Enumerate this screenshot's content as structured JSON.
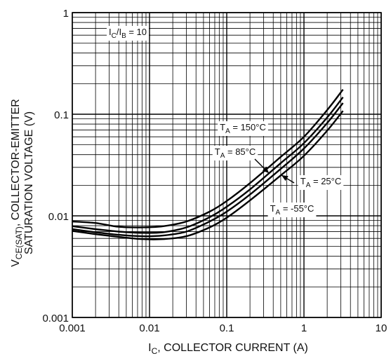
{
  "chart_data": {
    "type": "line",
    "x_scale": "log",
    "y_scale": "log",
    "xlim": [
      0.001,
      10
    ],
    "ylim": [
      0.001,
      1
    ],
    "grid": true,
    "x_ticks": [
      "0.001",
      "0.01",
      "0.1",
      "1",
      "10"
    ],
    "y_ticks": [
      "0.001",
      "0.01",
      "0.1",
      "1"
    ],
    "xlabel": {
      "main": "I",
      "sub": "C",
      "rest": ", COLLECTOR CURRENT (A)"
    },
    "ylabel": {
      "line1_main": "V",
      "line1_sub": "CE(SAT)",
      "line1_rest": ", COLLECTOR-EMITTER",
      "line2": "SATURATION VOLTAGE (V)"
    },
    "condition": {
      "a_main": "I",
      "a_sub": "C",
      "mid": "/I",
      "b_sub": "B",
      "rest": " = 10"
    },
    "series": [
      {
        "label_main": "T",
        "label_sub": "A",
        "label_rest": " = 150°C",
        "x": [
          0.001,
          0.002,
          0.004,
          0.008,
          0.015,
          0.03,
          0.06,
          0.1,
          0.2,
          0.5,
          1,
          2,
          3.2
        ],
        "y": [
          0.0088,
          0.0085,
          0.0078,
          0.0077,
          0.0079,
          0.0088,
          0.011,
          0.014,
          0.021,
          0.038,
          0.06,
          0.11,
          0.175
        ]
      },
      {
        "label_main": "T",
        "label_sub": "A",
        "label_rest": " = 85°C",
        "x": [
          0.001,
          0.002,
          0.004,
          0.008,
          0.015,
          0.03,
          0.06,
          0.1,
          0.2,
          0.5,
          1,
          2,
          3.2
        ],
        "y": [
          0.0079,
          0.0074,
          0.007,
          0.0068,
          0.0069,
          0.0077,
          0.0097,
          0.0123,
          0.0182,
          0.033,
          0.052,
          0.093,
          0.147
        ]
      },
      {
        "label_main": "T",
        "label_sub": "A",
        "label_rest": " = 25°C",
        "x": [
          0.001,
          0.002,
          0.004,
          0.008,
          0.015,
          0.03,
          0.06,
          0.1,
          0.2,
          0.5,
          1,
          2,
          3.2
        ],
        "y": [
          0.0074,
          0.0069,
          0.0065,
          0.0063,
          0.0064,
          0.007,
          0.0088,
          0.011,
          0.0162,
          0.029,
          0.046,
          0.082,
          0.129
        ]
      },
      {
        "label_main": "T",
        "label_sub": "A",
        "label_rest": " = -55°C",
        "x": [
          0.001,
          0.002,
          0.004,
          0.008,
          0.015,
          0.03,
          0.06,
          0.1,
          0.2,
          0.5,
          1,
          2,
          3.2
        ],
        "y": [
          0.0071,
          0.0066,
          0.0062,
          0.0059,
          0.0059,
          0.0063,
          0.0077,
          0.0096,
          0.0142,
          0.025,
          0.039,
          0.069,
          0.108
        ]
      }
    ]
  }
}
